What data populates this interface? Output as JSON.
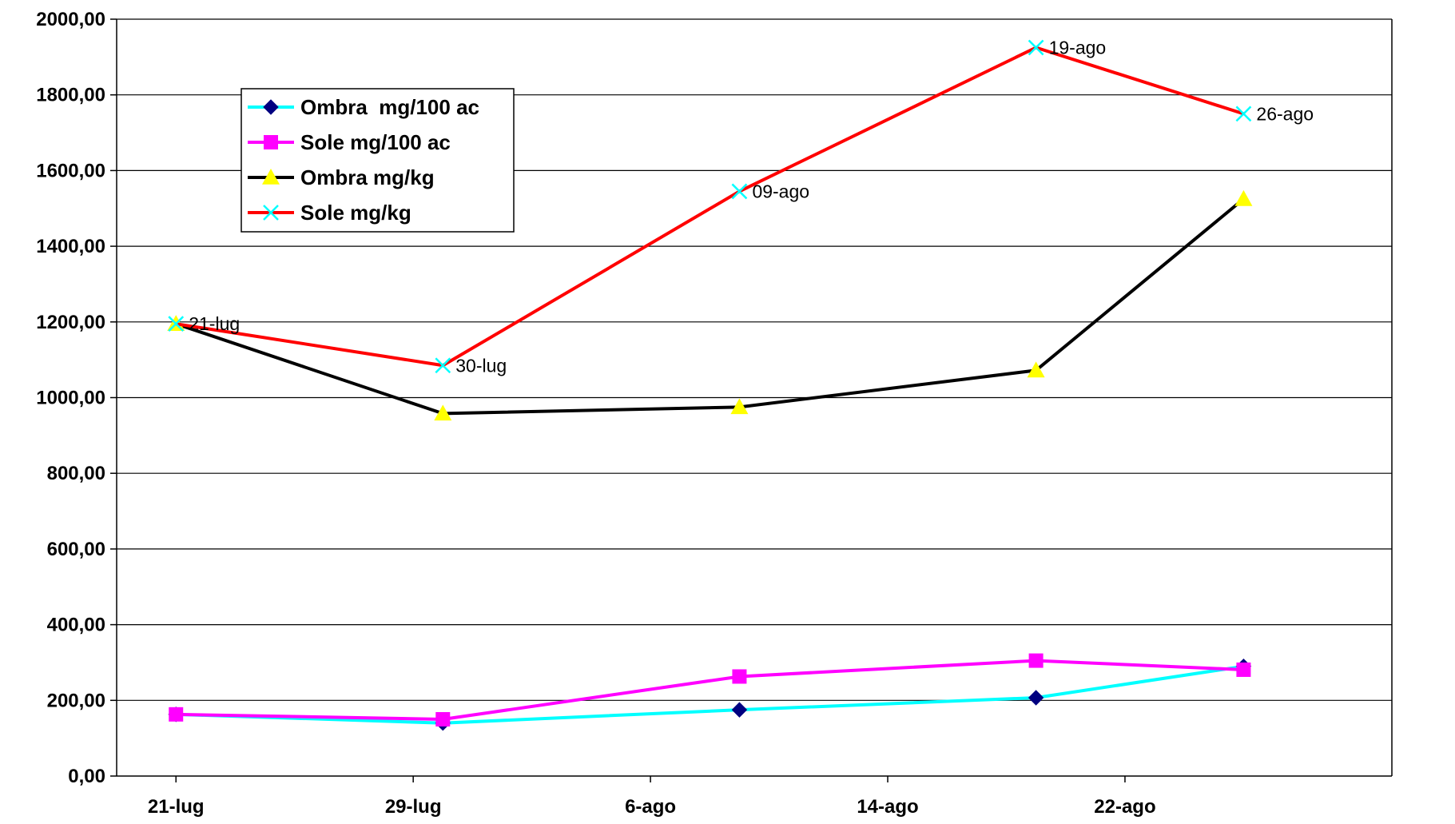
{
  "chart_data": {
    "type": "line",
    "title": "",
    "xlabel": "",
    "ylabel": "",
    "ylim": [
      0,
      2000
    ],
    "yticks": [
      "0,00",
      "200,00",
      "400,00",
      "600,00",
      "800,00",
      "1000,00",
      "1200,00",
      "1400,00",
      "1600,00",
      "1800,00",
      "2000,00"
    ],
    "ytick_values": [
      0,
      200,
      400,
      600,
      800,
      1000,
      1200,
      1400,
      1600,
      1800,
      2000
    ],
    "xlim": [
      "2004-07-19",
      "2004-08-31"
    ],
    "xticks": [
      "21-lug",
      "29-lug",
      "6-ago",
      "14-ago",
      "22-ago"
    ],
    "xtick_values": [
      "2004-07-21",
      "2004-07-29",
      "2004-08-06",
      "2004-08-14",
      "2004-08-22"
    ],
    "x": [
      "2004-07-21",
      "2004-07-30",
      "2004-08-09",
      "2004-08-19",
      "2004-08-26"
    ],
    "grid": "horizontal",
    "legend_position": "upper-left",
    "series": [
      {
        "name": "Ombra  mg/100 ac",
        "values": [
          163,
          140,
          175,
          207,
          290
        ],
        "line_color": "#00FFFF",
        "marker": "diamond",
        "marker_color": "#000080"
      },
      {
        "name": "Sole mg/100 ac",
        "values": [
          163,
          150,
          263,
          305,
          281
        ],
        "line_color": "#FF00FF",
        "marker": "square",
        "marker_color": "#FF00FF"
      },
      {
        "name": "Ombra mg/kg",
        "values": [
          1195,
          958,
          975,
          1072,
          1525
        ],
        "line_color": "#000000",
        "marker": "triangle",
        "marker_color": "#FFFF00"
      },
      {
        "name": "Sole mg/kg",
        "values": [
          1195,
          1085,
          1545,
          1925,
          1750
        ],
        "line_color": "#FF0000",
        "marker": "x",
        "marker_color": "#00FFFF",
        "point_labels": [
          "21-lug",
          "30-lug",
          "09-ago",
          "19-ago",
          "26-ago"
        ]
      }
    ]
  }
}
